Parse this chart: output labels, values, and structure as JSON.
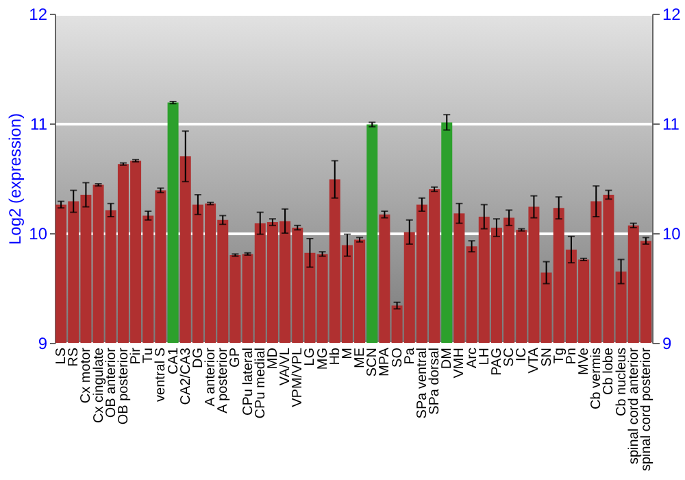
{
  "chart_data": {
    "type": "bar",
    "ylabel": "Log2 (expression)",
    "categories": [
      "LS",
      "RS",
      "Cx motor",
      "Cx cingulate",
      "OB anterior",
      "OB posterior",
      "Pir",
      "Tu",
      "ventral S",
      "CA1",
      "CA2/CA3",
      "DG",
      "A anterior",
      "A posterior",
      "GP",
      "CPu lateral",
      "CPu medial",
      "MD",
      "VA/VL",
      "VPM/VPL",
      "LG",
      "MG",
      "Hb",
      "M",
      "ME",
      "SCN",
      "MPA",
      "SO",
      "Pa",
      "SPa ventral",
      "SPa dorsal",
      "DM",
      "VMH",
      "Arc",
      "LH",
      "PAG",
      "SC",
      "IC",
      "VTA",
      "SN",
      "Tg",
      "Pn",
      "MVe",
      "Cb vermis",
      "Cb lobe",
      "Cb nucleus",
      "spinal cord anterior",
      "spinal cord posterior"
    ],
    "values": [
      10.26,
      10.29,
      10.35,
      10.44,
      10.21,
      10.63,
      10.66,
      10.16,
      10.39,
      11.19,
      10.7,
      10.26,
      10.27,
      10.12,
      9.8,
      9.81,
      10.09,
      10.1,
      10.11,
      10.05,
      9.82,
      9.81,
      10.49,
      9.89,
      9.94,
      10.99,
      10.17,
      9.34,
      10.01,
      10.26,
      10.4,
      11.01,
      10.18,
      9.88,
      10.15,
      10.05,
      10.14,
      10.03,
      10.24,
      9.64,
      10.23,
      9.85,
      9.76,
      10.29,
      10.35,
      9.65,
      10.07,
      9.93
    ],
    "errors": [
      0.03,
      0.1,
      0.11,
      0.01,
      0.06,
      0.01,
      0.01,
      0.04,
      0.02,
      0.01,
      0.23,
      0.09,
      0.01,
      0.04,
      0.01,
      0.01,
      0.1,
      0.03,
      0.11,
      0.02,
      0.13,
      0.02,
      0.17,
      0.1,
      0.02,
      0.02,
      0.03,
      0.03,
      0.11,
      0.06,
      0.02,
      0.07,
      0.09,
      0.05,
      0.11,
      0.08,
      0.07,
      0.01,
      0.1,
      0.1,
      0.1,
      0.12,
      0.01,
      0.14,
      0.04,
      0.11,
      0.02,
      0.03
    ],
    "colors": [
      "#b03030",
      "#b03030",
      "#b03030",
      "#b03030",
      "#b03030",
      "#b03030",
      "#b03030",
      "#b03030",
      "#b03030",
      "#2ca02c",
      "#b03030",
      "#b03030",
      "#b03030",
      "#b03030",
      "#b03030",
      "#b03030",
      "#b03030",
      "#b03030",
      "#b03030",
      "#b03030",
      "#b03030",
      "#b03030",
      "#b03030",
      "#b03030",
      "#b03030",
      "#2ca02c",
      "#b03030",
      "#b03030",
      "#b03030",
      "#b03030",
      "#b03030",
      "#2ca02c",
      "#b03030",
      "#b03030",
      "#b03030",
      "#b03030",
      "#b03030",
      "#b03030",
      "#b03030",
      "#b03030",
      "#b03030",
      "#b03030",
      "#b03030",
      "#b03030",
      "#b03030",
      "#b03030",
      "#b03030",
      "#b03030"
    ],
    "ylim": [
      9,
      12
    ],
    "yticks": [
      9,
      10,
      11,
      12
    ],
    "y2lim": [
      9,
      12
    ],
    "y2ticks": [
      9,
      10,
      11,
      12
    ],
    "grid": "y"
  }
}
